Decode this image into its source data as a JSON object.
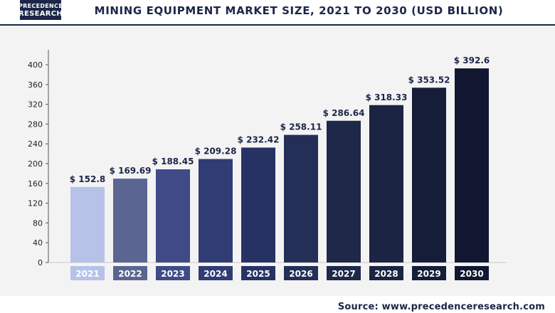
{
  "header": {
    "logo_line1": "PRECEDENCE",
    "logo_line2": "RESEARCH",
    "title": "MINING EQUIPMENT MARKET SIZE, 2021 TO 2030 (USD BILLION)"
  },
  "footer": {
    "source": "Source: www.precedenceresearch.com"
  },
  "colors": {
    "bars": [
      "#b7c2e8",
      "#5a6691",
      "#3f4a86",
      "#303c74",
      "#273264",
      "#232f56",
      "#1e2849",
      "#1b2442",
      "#161d38",
      "#111730"
    ],
    "axis": "#555555",
    "label_text": "#1c2648",
    "category_text": "#ffffff"
  },
  "chart_data": {
    "type": "bar",
    "title": "MINING EQUIPMENT MARKET SIZE, 2021 TO 2030 (USD BILLION)",
    "xlabel": "",
    "ylabel": "",
    "categories": [
      "2021",
      "2022",
      "2023",
      "2024",
      "2025",
      "2026",
      "2027",
      "2028",
      "2029",
      "2030"
    ],
    "values": [
      152.8,
      169.69,
      188.45,
      209.28,
      232.42,
      258.11,
      286.64,
      318.33,
      353.52,
      392.6
    ],
    "data_labels": [
      "$ 152.8",
      "$ 169.69",
      "$ 188.45",
      "$ 209.28",
      "$ 232.42",
      "$ 258.11",
      "$ 286.64",
      "$ 318.33",
      "$ 353.52",
      "$ 392.6"
    ],
    "ylim": [
      0,
      400
    ],
    "yticks": [
      0,
      40,
      80,
      120,
      160,
      200,
      240,
      280,
      320,
      360,
      400
    ],
    "grid": false,
    "legend": "none"
  }
}
